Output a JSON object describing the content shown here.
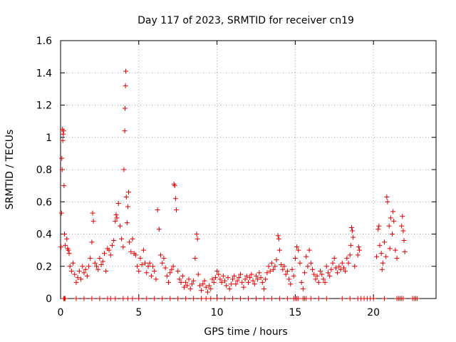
{
  "chart_data": {
    "type": "scatter",
    "title": "Day 117 of 2023, SRMTID for receiver cn19",
    "xlabel": "GPS time / hours",
    "ylabel": "SRMTID / TECUs",
    "xlim": [
      0,
      24
    ],
    "ylim": [
      0,
      1.6
    ],
    "xticks": [
      0,
      5,
      10,
      15,
      20
    ],
    "xtick_labels": [
      "0",
      "5",
      "10",
      "15",
      "20"
    ],
    "yticks": [
      0,
      0.2,
      0.4,
      0.6,
      0.8,
      1.0,
      1.2,
      1.4,
      1.6
    ],
    "ytick_labels": [
      "0",
      "0.2",
      "0.4",
      "0.6",
      "0.8",
      "1",
      "1.2",
      "1.4",
      "1.6"
    ],
    "grid": true,
    "marker": "+",
    "marker_color": "#e00000",
    "series": [
      {
        "name": "SRMTID",
        "points": [
          [
            0.03,
            0.32
          ],
          [
            0.06,
            0.53
          ],
          [
            0.08,
            0.87
          ],
          [
            0.1,
            0.8
          ],
          [
            0.12,
            1.05
          ],
          [
            0.14,
            0.98
          ],
          [
            0.17,
            1.02
          ],
          [
            0.2,
            1.04
          ],
          [
            0.22,
            0.7
          ],
          [
            0.25,
            0.4
          ],
          [
            0.3,
            0.33
          ],
          [
            0.4,
            0.37
          ],
          [
            0.45,
            0.31
          ],
          [
            0.5,
            0.3
          ],
          [
            0.55,
            0.28
          ],
          [
            0.6,
            0.2
          ],
          [
            0.7,
            0.17
          ],
          [
            0.8,
            0.22
          ],
          [
            0.9,
            0.15
          ],
          [
            1.0,
            0.1
          ],
          [
            1.1,
            0.13
          ],
          [
            1.2,
            0.17
          ],
          [
            1.3,
            0.12
          ],
          [
            1.4,
            0.2
          ],
          [
            1.5,
            0.16
          ],
          [
            1.6,
            0.18
          ],
          [
            1.7,
            0.14
          ],
          [
            1.8,
            0.2
          ],
          [
            1.9,
            0.25
          ],
          [
            2.0,
            0.35
          ],
          [
            2.05,
            0.53
          ],
          [
            2.1,
            0.48
          ],
          [
            2.2,
            0.22
          ],
          [
            2.3,
            0.2
          ],
          [
            2.4,
            0.18
          ],
          [
            2.5,
            0.25
          ],
          [
            2.6,
            0.21
          ],
          [
            2.7,
            0.23
          ],
          [
            2.8,
            0.28
          ],
          [
            2.9,
            0.17
          ],
          [
            3.0,
            0.31
          ],
          [
            3.1,
            0.3
          ],
          [
            3.2,
            0.27
          ],
          [
            3.3,
            0.33
          ],
          [
            3.4,
            0.36
          ],
          [
            3.5,
            0.48
          ],
          [
            3.55,
            0.52
          ],
          [
            3.6,
            0.5
          ],
          [
            3.7,
            0.59
          ],
          [
            3.8,
            0.45
          ],
          [
            3.9,
            0.37
          ],
          [
            4.0,
            0.32
          ],
          [
            4.05,
            0.8
          ],
          [
            4.1,
            1.04
          ],
          [
            4.12,
            1.18
          ],
          [
            4.15,
            1.32
          ],
          [
            4.17,
            1.41
          ],
          [
            4.2,
            0.63
          ],
          [
            4.25,
            0.47
          ],
          [
            4.3,
            0.57
          ],
          [
            4.35,
            0.66
          ],
          [
            4.4,
            0.35
          ],
          [
            4.5,
            0.29
          ],
          [
            4.6,
            0.37
          ],
          [
            4.7,
            0.28
          ],
          [
            4.8,
            0.27
          ],
          [
            4.9,
            0.2
          ],
          [
            5.0,
            0.17
          ],
          [
            5.1,
            0.25
          ],
          [
            5.2,
            0.21
          ],
          [
            5.3,
            0.3
          ],
          [
            5.4,
            0.22
          ],
          [
            5.5,
            0.16
          ],
          [
            5.6,
            0.2
          ],
          [
            5.7,
            0.22
          ],
          [
            5.8,
            0.14
          ],
          [
            5.9,
            0.2
          ],
          [
            6.0,
            0.17
          ],
          [
            6.1,
            0.12
          ],
          [
            6.2,
            0.55
          ],
          [
            6.3,
            0.43
          ],
          [
            6.4,
            0.27
          ],
          [
            6.5,
            0.22
          ],
          [
            6.6,
            0.25
          ],
          [
            6.7,
            0.19
          ],
          [
            6.8,
            0.14
          ],
          [
            6.9,
            0.1
          ],
          [
            7.0,
            0.16
          ],
          [
            7.1,
            0.18
          ],
          [
            7.2,
            0.2
          ],
          [
            7.25,
            0.71
          ],
          [
            7.3,
            0.7
          ],
          [
            7.35,
            0.62
          ],
          [
            7.4,
            0.55
          ],
          [
            7.5,
            0.17
          ],
          [
            7.6,
            0.12
          ],
          [
            7.7,
            0.1
          ],
          [
            7.8,
            0.14
          ],
          [
            7.9,
            0.07
          ],
          [
            8.0,
            0.1
          ],
          [
            8.1,
            0.08
          ],
          [
            8.2,
            0.12
          ],
          [
            8.3,
            0.06
          ],
          [
            8.4,
            0.09
          ],
          [
            8.5,
            0.11
          ],
          [
            8.6,
            0.25
          ],
          [
            8.7,
            0.4
          ],
          [
            8.75,
            0.37
          ],
          [
            8.8,
            0.15
          ],
          [
            8.9,
            0.08
          ],
          [
            9.0,
            0.05
          ],
          [
            9.1,
            0.09
          ],
          [
            9.2,
            0.11
          ],
          [
            9.3,
            0.07
          ],
          [
            9.4,
            0.04
          ],
          [
            9.5,
            0.08
          ],
          [
            9.6,
            0.06
          ],
          [
            9.7,
            0.12
          ],
          [
            9.8,
            0.1
          ],
          [
            9.9,
            0.13
          ],
          [
            10.0,
            0.17
          ],
          [
            10.1,
            0.15
          ],
          [
            10.2,
            0.12
          ],
          [
            10.3,
            0.1
          ],
          [
            10.4,
            0.14
          ],
          [
            10.5,
            0.11
          ],
          [
            10.6,
            0.08
          ],
          [
            10.7,
            0.13
          ],
          [
            10.8,
            0.06
          ],
          [
            10.9,
            0.09
          ],
          [
            11.0,
            0.12
          ],
          [
            11.1,
            0.14
          ],
          [
            11.2,
            0.09
          ],
          [
            11.3,
            0.11
          ],
          [
            11.4,
            0.13
          ],
          [
            11.5,
            0.15
          ],
          [
            11.6,
            0.1
          ],
          [
            11.7,
            0.07
          ],
          [
            11.8,
            0.12
          ],
          [
            11.9,
            0.14
          ],
          [
            12.0,
            0.1
          ],
          [
            12.1,
            0.13
          ],
          [
            12.2,
            0.15
          ],
          [
            12.3,
            0.11
          ],
          [
            12.4,
            0.09
          ],
          [
            12.5,
            0.14
          ],
          [
            12.6,
            0.12
          ],
          [
            12.7,
            0.16
          ],
          [
            12.8,
            0.13
          ],
          [
            12.9,
            0.1
          ],
          [
            13.0,
            0.06
          ],
          [
            13.1,
            0.12
          ],
          [
            13.2,
            0.16
          ],
          [
            13.3,
            0.2
          ],
          [
            13.4,
            0.17
          ],
          [
            13.5,
            0.22
          ],
          [
            13.6,
            0.18
          ],
          [
            13.7,
            0.2
          ],
          [
            13.8,
            0.24
          ],
          [
            13.9,
            0.39
          ],
          [
            13.95,
            0.37
          ],
          [
            14.0,
            0.3
          ],
          [
            14.1,
            0.21
          ],
          [
            14.2,
            0.18
          ],
          [
            14.3,
            0.2
          ],
          [
            14.4,
            0.15
          ],
          [
            14.5,
            0.17
          ],
          [
            14.6,
            0.12
          ],
          [
            14.7,
            0.09
          ],
          [
            14.8,
            0.18
          ],
          [
            14.9,
            0.14
          ],
          [
            15.0,
            0.25
          ],
          [
            15.1,
            0.32
          ],
          [
            15.2,
            0.3
          ],
          [
            15.3,
            0.22
          ],
          [
            15.4,
            0.1
          ],
          [
            15.5,
            0.06
          ],
          [
            15.6,
            0.16
          ],
          [
            15.7,
            0.26
          ],
          [
            15.8,
            0.2
          ],
          [
            15.9,
            0.3
          ],
          [
            16.0,
            0.22
          ],
          [
            16.1,
            0.18
          ],
          [
            16.2,
            0.15
          ],
          [
            16.3,
            0.12
          ],
          [
            16.4,
            0.14
          ],
          [
            16.5,
            0.1
          ],
          [
            16.6,
            0.17
          ],
          [
            16.7,
            0.15
          ],
          [
            16.8,
            0.12
          ],
          [
            16.9,
            0.1
          ],
          [
            17.0,
            0.2
          ],
          [
            17.1,
            0.16
          ],
          [
            17.2,
            0.14
          ],
          [
            17.3,
            0.18
          ],
          [
            17.4,
            0.22
          ],
          [
            17.5,
            0.25
          ],
          [
            17.6,
            0.19
          ],
          [
            17.7,
            0.16
          ],
          [
            17.8,
            0.2
          ],
          [
            17.9,
            0.18
          ],
          [
            18.0,
            0.22
          ],
          [
            18.1,
            0.19
          ],
          [
            18.2,
            0.17
          ],
          [
            18.3,
            0.25
          ],
          [
            18.4,
            0.22
          ],
          [
            18.5,
            0.27
          ],
          [
            18.55,
            0.33
          ],
          [
            18.6,
            0.44
          ],
          [
            18.65,
            0.42
          ],
          [
            18.7,
            0.38
          ],
          [
            18.8,
            0.2
          ],
          [
            19.0,
            0.27
          ],
          [
            19.05,
            0.32
          ],
          [
            19.1,
            0.3
          ],
          [
            20.2,
            0.26
          ],
          [
            20.3,
            0.43
          ],
          [
            20.35,
            0.45
          ],
          [
            20.4,
            0.33
          ],
          [
            20.5,
            0.28
          ],
          [
            20.55,
            0.18
          ],
          [
            20.6,
            0.22
          ],
          [
            20.7,
            0.35
          ],
          [
            20.8,
            0.26
          ],
          [
            20.85,
            0.63
          ],
          [
            20.9,
            0.6
          ],
          [
            21.0,
            0.45
          ],
          [
            21.05,
            0.31
          ],
          [
            21.1,
            0.5
          ],
          [
            21.2,
            0.4
          ],
          [
            21.25,
            0.54
          ],
          [
            21.3,
            0.48
          ],
          [
            21.4,
            0.3
          ],
          [
            21.5,
            0.25
          ],
          [
            21.8,
            0.45
          ],
          [
            21.85,
            0.51
          ],
          [
            21.9,
            0.42
          ],
          [
            21.95,
            0.36
          ],
          [
            22.0,
            0.29
          ]
        ]
      }
    ],
    "zero_points_x": [
      0.2,
      0.25,
      0.3,
      1.0,
      1.5,
      2.0,
      2.5,
      3.0,
      3.2,
      3.5,
      4.0,
      4.3,
      4.6,
      5.0,
      5.5,
      6.0,
      6.5,
      7.0,
      7.5,
      8.0,
      8.5,
      9.0,
      9.3,
      9.6,
      10.0,
      10.5,
      11.0,
      11.5,
      12.0,
      12.5,
      13.0,
      13.5,
      14.0,
      14.5,
      14.9,
      15.0,
      15.1,
      15.2,
      15.5,
      15.6,
      15.7,
      16.0,
      16.5,
      17.0,
      18.0,
      18.5,
      19.0,
      19.2,
      19.4,
      19.6,
      19.8,
      20.0,
      20.7,
      21.5,
      21.6,
      21.7,
      21.8,
      21.9,
      22.5,
      22.6,
      22.7,
      22.8
    ]
  }
}
